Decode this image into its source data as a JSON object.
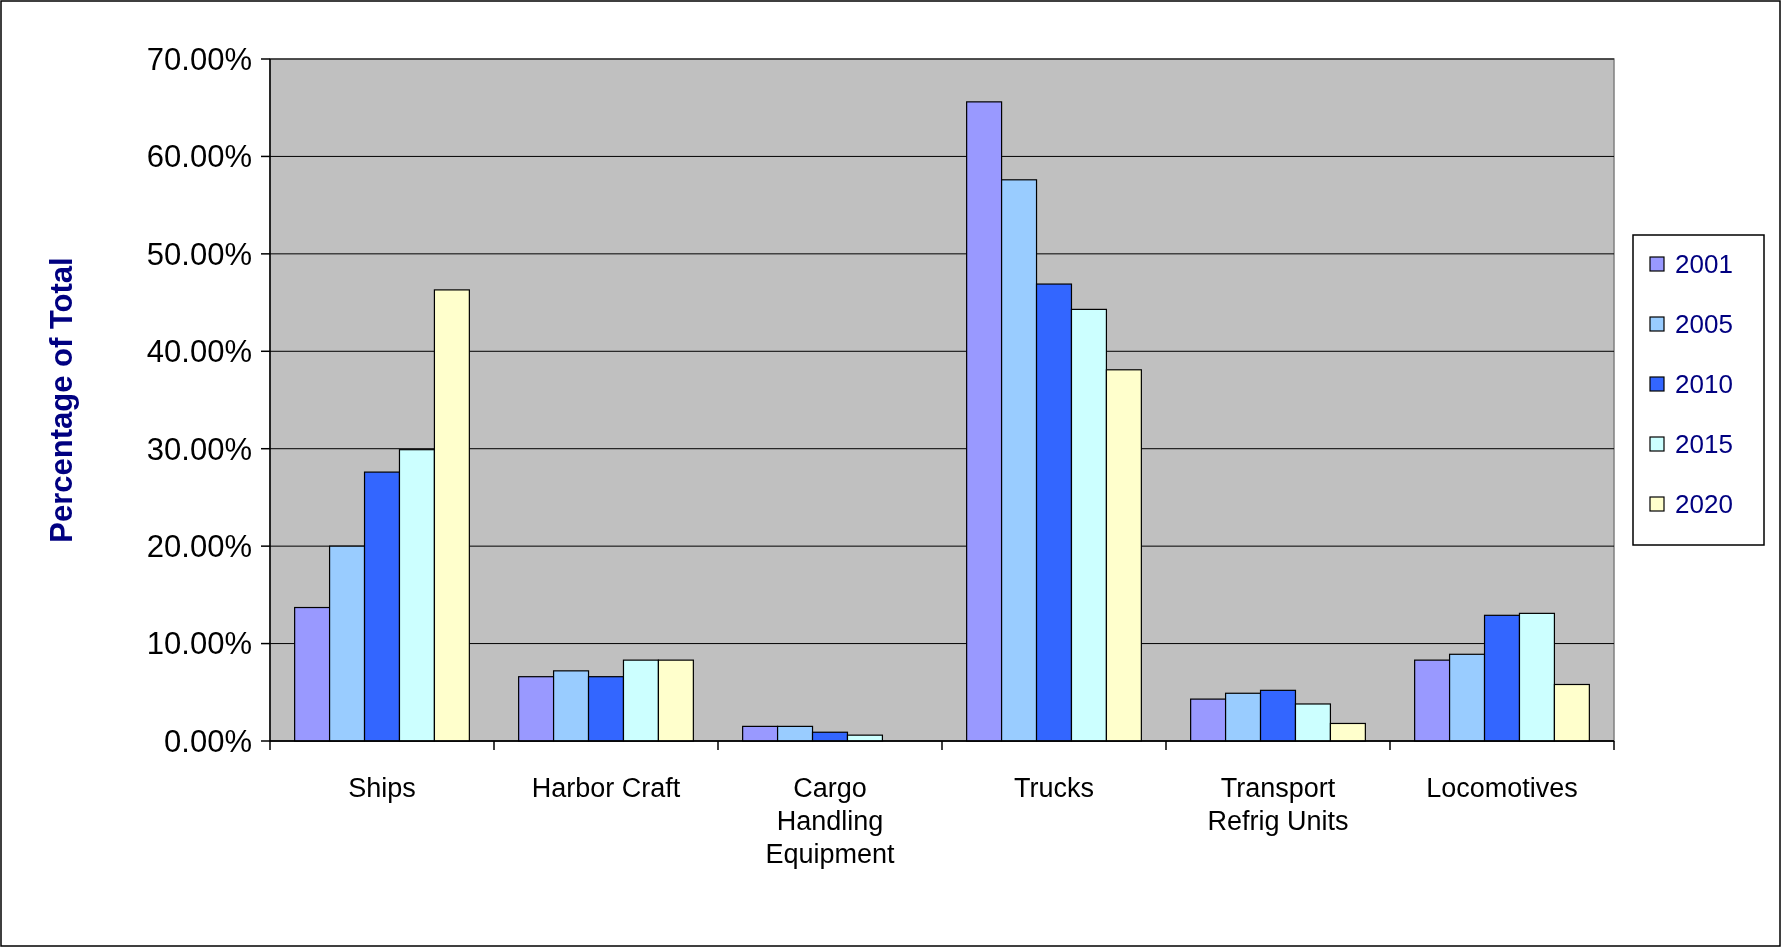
{
  "chart_data": {
    "type": "bar",
    "ylabel": "Percentage of Total",
    "categories": [
      "Ships",
      "Harbor Craft",
      "Cargo Handling Equipment",
      "Trucks",
      "Transport Refrig Units",
      "Locomotives"
    ],
    "series": [
      {
        "name": "2001",
        "color": "#9999ff",
        "values": [
          13.7,
          6.6,
          1.5,
          65.6,
          4.3,
          8.3
        ]
      },
      {
        "name": "2005",
        "color": "#99ccff",
        "values": [
          20.0,
          7.2,
          1.5,
          57.6,
          4.9,
          8.9
        ]
      },
      {
        "name": "2010",
        "color": "#3366ff",
        "values": [
          27.6,
          6.6,
          0.9,
          46.9,
          5.2,
          12.9
        ]
      },
      {
        "name": "2015",
        "color": "#ccffff",
        "values": [
          29.9,
          8.3,
          0.6,
          44.3,
          3.8,
          13.1
        ]
      },
      {
        "name": "2020",
        "color": "#ffffcc",
        "values": [
          46.3,
          8.3,
          0,
          38.1,
          1.8,
          5.8
        ]
      }
    ],
    "ylim": [
      0,
      70
    ],
    "yticks": [
      {
        "value": 0,
        "label": "0.00%"
      },
      {
        "value": 10,
        "label": "10.00%"
      },
      {
        "value": 20,
        "label": "20.00%"
      },
      {
        "value": 30,
        "label": "30.00%"
      },
      {
        "value": 40,
        "label": "40.00%"
      },
      {
        "value": 50,
        "label": "50.00%"
      },
      {
        "value": 60,
        "label": "60.00%"
      },
      {
        "value": 70,
        "label": "70.00%"
      }
    ],
    "grid": "y",
    "legend": "right"
  }
}
